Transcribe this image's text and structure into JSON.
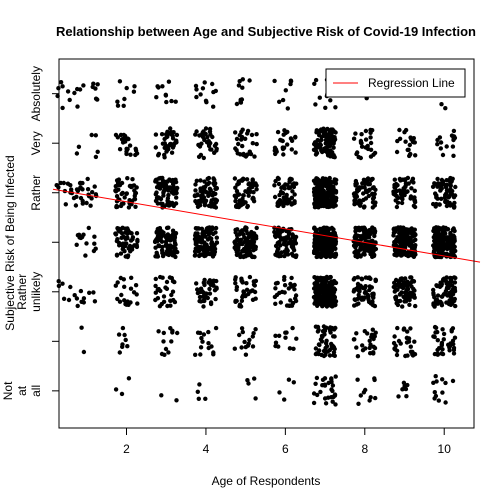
{
  "chart_data": {
    "type": "scatter",
    "title": "Relationship between Age and Subjective Risk of Covid-19 Infection",
    "xlabel": "Age of Respondents",
    "ylabel": "Subjective Risk of Being Infected",
    "xlim": [
      0.3,
      10.75
    ],
    "ylim": [
      0.25,
      7.7
    ],
    "x_ticks": [
      2,
      4,
      6,
      8,
      10
    ],
    "y_ticks": [
      {
        "value": 1,
        "label": "Not at all"
      },
      {
        "value": 2,
        "label": ""
      },
      {
        "value": 3,
        "label": "Rather unlikely"
      },
      {
        "value": 4,
        "label": ""
      },
      {
        "value": 5,
        "label": "Rather"
      },
      {
        "value": 6,
        "label": "Very"
      },
      {
        "value": 7,
        "label": "Absolutely"
      }
    ],
    "grid": false,
    "legend": {
      "placement": "top-right",
      "entries": [
        {
          "label": "Regression Line",
          "color": "#ff0000"
        }
      ]
    },
    "point_color": "#000000",
    "line_color": "#ff0000",
    "jitter": {
      "x": 0.28,
      "y": 0.3
    },
    "point_counts": [
      {
        "x": 0.5,
        "counts": [
          0,
          0,
          8,
          0,
          14,
          0,
          8
        ]
      },
      {
        "x": 1,
        "counts": [
          0,
          2,
          8,
          14,
          22,
          6,
          10
        ]
      },
      {
        "x": 2,
        "counts": [
          3,
          8,
          20,
          55,
          50,
          22,
          8
        ]
      },
      {
        "x": 3,
        "counts": [
          2,
          12,
          30,
          95,
          75,
          38,
          10
        ]
      },
      {
        "x": 4,
        "counts": [
          4,
          15,
          38,
          110,
          70,
          35,
          12
        ]
      },
      {
        "x": 5,
        "counts": [
          4,
          15,
          35,
          100,
          60,
          30,
          10
        ]
      },
      {
        "x": 6,
        "counts": [
          4,
          12,
          30,
          80,
          55,
          25,
          8
        ]
      },
      {
        "x": 7,
        "counts": [
          30,
          55,
          180,
          260,
          200,
          90,
          10
        ]
      },
      {
        "x": 8,
        "counts": [
          10,
          25,
          60,
          130,
          70,
          25,
          4
        ]
      },
      {
        "x": 9,
        "counts": [
          8,
          30,
          70,
          150,
          60,
          20,
          2
        ]
      },
      {
        "x": 10,
        "counts": [
          12,
          35,
          80,
          170,
          60,
          15,
          2
        ]
      }
    ],
    "regression": {
      "x": [
        0.3,
        10.75
      ],
      "y": [
        5.05,
        3.6
      ]
    }
  }
}
